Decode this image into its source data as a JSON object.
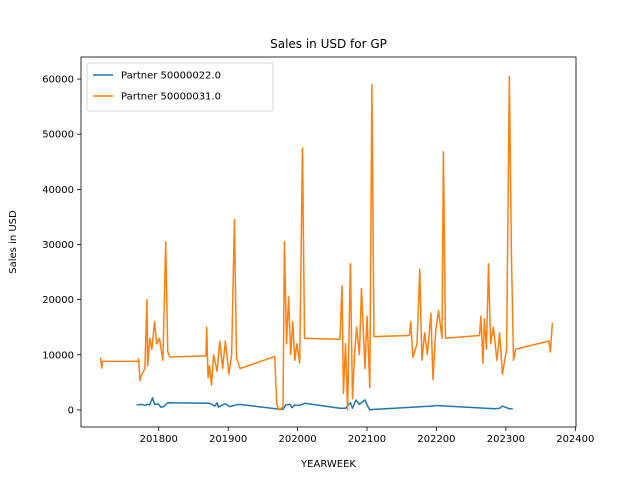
{
  "chart_data": {
    "type": "line",
    "title": "Sales in USD for GP",
    "xlabel": "YEARWEEK",
    "ylabel": "Sales in USD",
    "xlim": [
      201688,
      202401
    ],
    "ylim": [
      -3100,
      64000
    ],
    "xticks": [
      201800,
      201900,
      202000,
      202100,
      202200,
      202300,
      202400
    ],
    "yticks": [
      0,
      10000,
      20000,
      30000,
      40000,
      50000,
      60000
    ],
    "legend": "upper left",
    "series": [
      {
        "name": "Partner 50000022.0",
        "color": "#1f77b4",
        "x": [
          201768,
          201776,
          201780,
          201783,
          201787,
          201791,
          201794,
          201799,
          201803,
          201807,
          201813,
          201873,
          201881,
          201884,
          201886,
          201892,
          201896,
          201902,
          201911,
          201917,
          201968,
          201979,
          201983,
          201989,
          201992,
          201996,
          202003,
          202010,
          202061,
          202069,
          202076,
          202079,
          202084,
          202089,
          202097,
          202101,
          202104,
          202110,
          202195,
          202199,
          202284,
          202291,
          202295,
          202301,
          202305,
          202310
        ],
        "values": [
          900,
          1000,
          800,
          1000,
          900,
          2200,
          1000,
          1100,
          500,
          600,
          1300,
          1200,
          700,
          1300,
          500,
          900,
          1100,
          600,
          900,
          1000,
          200,
          100,
          900,
          1000,
          400,
          900,
          800,
          1200,
          300,
          300,
          1300,
          300,
          1800,
          1000,
          1800,
          700,
          0,
          100,
          700,
          800,
          200,
          300,
          700,
          400,
          200,
          200
        ]
      },
      {
        "name": "Partner 50000031.0",
        "color": "#ff7f0e",
        "x": [
          201716,
          201718,
          201719,
          201770,
          201771,
          201773,
          201774,
          201780,
          201783,
          201784,
          201787,
          201790,
          201794,
          201797,
          201801,
          201806,
          201810,
          201813,
          201816,
          201868,
          201869,
          201871,
          201873,
          201876,
          201879,
          201884,
          201888,
          201892,
          201896,
          201901,
          201905,
          201909,
          201912,
          201917,
          201967,
          201970,
          201973,
          201979,
          201981,
          201984,
          201987,
          201990,
          201993,
          201996,
          201999,
          202003,
          202007,
          202010,
          202061,
          202064,
          202066,
          202069,
          202072,
          202076,
          202079,
          202082,
          202085,
          202089,
          202092,
          202097,
          202100,
          202104,
          202107,
          202110,
          202161,
          202163,
          202166,
          202172,
          202176,
          202179,
          202183,
          202187,
          202192,
          202195,
          202199,
          202203,
          202208,
          202210,
          202213,
          202262,
          202264,
          202267,
          202269,
          202272,
          202275,
          202278,
          202282,
          202287,
          202291,
          202295,
          202301,
          202305,
          202308,
          202311,
          202314,
          202362,
          202364,
          202367
        ],
        "values": [
          9500,
          7600,
          8800,
          8800,
          9200,
          5300,
          6000,
          7500,
          20000,
          8000,
          13000,
          11000,
          16000,
          12000,
          13000,
          9000,
          30500,
          10500,
          9600,
          9800,
          15000,
          5800,
          8000,
          4500,
          10000,
          7000,
          12500,
          7500,
          12500,
          6500,
          10000,
          34500,
          9500,
          7500,
          9700,
          1000,
          0,
          500,
          30500,
          12000,
          20500,
          10000,
          16000,
          9000,
          12000,
          8500,
          47500,
          13000,
          12800,
          22500,
          3000,
          12000,
          0,
          26500,
          2000,
          10000,
          15000,
          10000,
          22000,
          7500,
          17000,
          4000,
          59000,
          13300,
          13500,
          16000,
          9500,
          12000,
          25500,
          9000,
          14000,
          10000,
          17500,
          5500,
          14500,
          18000,
          13000,
          46800,
          13000,
          13500,
          17000,
          8500,
          16500,
          11000,
          26500,
          12000,
          15000,
          9000,
          14000,
          6500,
          11000,
          60500,
          28000,
          9000,
          11000,
          12500,
          10500,
          15800
        ]
      }
    ]
  }
}
